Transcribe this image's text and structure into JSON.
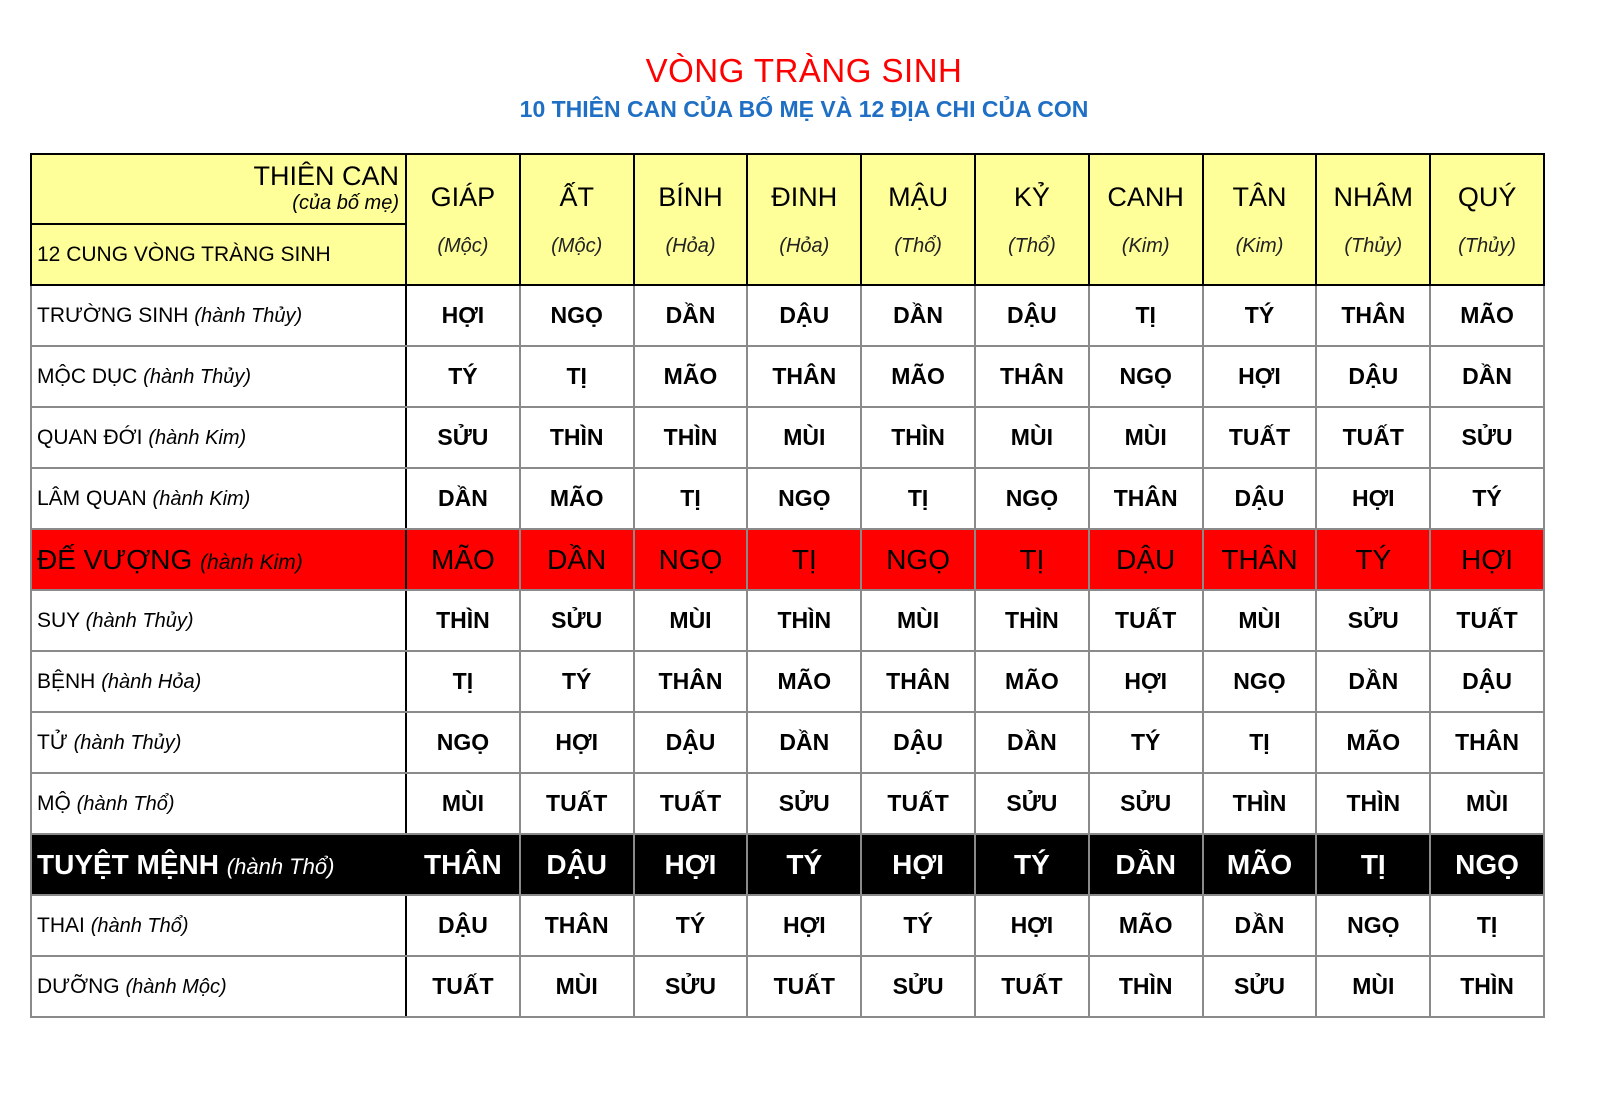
{
  "title": "VÒNG TRÀNG SINH",
  "subtitle": "10 THIÊN CAN CỦA BỐ MẸ VÀ 12 ĐỊA CHI CỦA CON",
  "header": {
    "corner_top": "THIÊN CAN",
    "corner_top_sub": "(của bố mẹ)",
    "corner_bottom": "12 CUNG VÒNG TRÀNG SINH",
    "columns": [
      {
        "name": "GIÁP",
        "element": "(Mộc)"
      },
      {
        "name": "ẤT",
        "element": "(Mộc)"
      },
      {
        "name": "BÍNH",
        "element": "(Hỏa)"
      },
      {
        "name": "ĐINH",
        "element": "(Hỏa)"
      },
      {
        "name": "MẬU",
        "element": "(Thổ)"
      },
      {
        "name": "KỶ",
        "element": "(Thổ)"
      },
      {
        "name": "CANH",
        "element": "(Kim)"
      },
      {
        "name": "TÂN",
        "element": "(Kim)"
      },
      {
        "name": "NHÂM",
        "element": "(Thủy)"
      },
      {
        "name": "QUÝ",
        "element": "(Thủy)"
      }
    ]
  },
  "rows": [
    {
      "label": "TRƯỜNG SINH",
      "element": "(hành Thủy)",
      "style": "",
      "values": [
        "HỢI",
        "NGỌ",
        "DẦN",
        "DẬU",
        "DẦN",
        "DẬU",
        "TỊ",
        "TÝ",
        "THÂN",
        "MÃO"
      ]
    },
    {
      "label": "MỘC DỤC",
      "element": "(hành Thủy)",
      "style": "",
      "values": [
        "TÝ",
        "TỊ",
        "MÃO",
        "THÂN",
        "MÃO",
        "THÂN",
        "NGỌ",
        "HỢI",
        "DẬU",
        "DẦN"
      ]
    },
    {
      "label": "QUAN ĐỚI",
      "element": "(hành Kim)",
      "style": "",
      "values": [
        "SỬU",
        "THÌN",
        "THÌN",
        "MÙI",
        "THÌN",
        "MÙI",
        "MÙI",
        "TUẤT",
        "TUẤT",
        "SỬU"
      ]
    },
    {
      "label": "LÂM QUAN",
      "element": "(hành Kim)",
      "style": "",
      "values": [
        "DẦN",
        "MÃO",
        "TỊ",
        "NGỌ",
        "TỊ",
        "NGỌ",
        "THÂN",
        "DẬU",
        "HỢI",
        "TÝ"
      ]
    },
    {
      "label": "ĐẾ VƯỢNG",
      "element": "(hành Kim)",
      "style": "red",
      "values": [
        "MÃO",
        "DẦN",
        "NGỌ",
        "TỊ",
        "NGỌ",
        "TỊ",
        "DẬU",
        "THÂN",
        "TÝ",
        "HỢI"
      ]
    },
    {
      "label": "SUY",
      "element": "(hành Thủy)",
      "style": "",
      "values": [
        "THÌN",
        "SỬU",
        "MÙI",
        "THÌN",
        "MÙI",
        "THÌN",
        "TUẤT",
        "MÙI",
        "SỬU",
        "TUẤT"
      ]
    },
    {
      "label": "BỆNH",
      "element": "(hành Hỏa)",
      "style": "",
      "values": [
        "TỊ",
        "TÝ",
        "THÂN",
        "MÃO",
        "THÂN",
        "MÃO",
        "HỢI",
        "NGỌ",
        "DẦN",
        "DẬU"
      ]
    },
    {
      "label": "TỬ",
      "element": "(hành Thủy)",
      "style": "",
      "values": [
        "NGỌ",
        "HỢI",
        "DẬU",
        "DẦN",
        "DẬU",
        "DẦN",
        "TÝ",
        "TỊ",
        "MÃO",
        "THÂN"
      ]
    },
    {
      "label": "MỘ",
      "element": "(hành Thổ)",
      "style": "",
      "values": [
        "MÙI",
        "TUẤT",
        "TUẤT",
        "SỬU",
        "TUẤT",
        "SỬU",
        "SỬU",
        "THÌN",
        "THÌN",
        "MÙI"
      ]
    },
    {
      "label": "TUYỆT MỆNH",
      "element": "(hành Thổ)",
      "style": "black",
      "values": [
        "THÂN",
        "DẬU",
        "HỢI",
        "TÝ",
        "HỢI",
        "TÝ",
        "DẦN",
        "MÃO",
        "TỊ",
        "NGỌ"
      ]
    },
    {
      "label": "THAI",
      "element": "(hành Thổ)",
      "style": "",
      "values": [
        "DẬU",
        "THÂN",
        "TÝ",
        "HỢI",
        "TÝ",
        "HỢI",
        "MÃO",
        "DẦN",
        "NGỌ",
        "TỊ"
      ]
    },
    {
      "label": "DƯỠNG",
      "element": "(hành Mộc)",
      "style": "",
      "values": [
        "TUẤT",
        "MÙI",
        "SỬU",
        "TUẤT",
        "SỬU",
        "TUẤT",
        "THÌN",
        "SỬU",
        "MÙI",
        "THÌN"
      ]
    }
  ],
  "colors": {
    "title": "#ff0000",
    "subtitle": "#1f6fc5",
    "header_bg": "#ffff99",
    "highlight_red": "#ff0000",
    "highlight_black": "#000000"
  }
}
